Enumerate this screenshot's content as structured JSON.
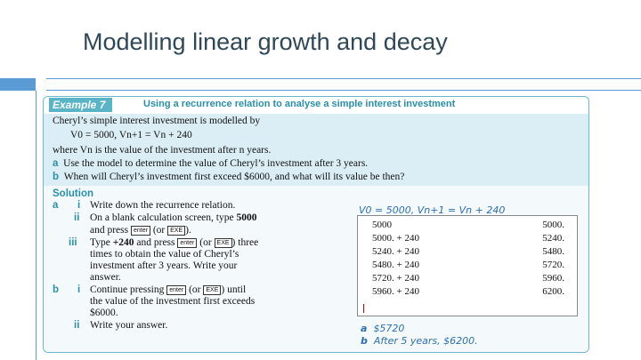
{
  "slide": {
    "title": "Modelling linear growth and decay"
  },
  "example": {
    "badge": "Example 7",
    "heading": "Using a recurrence relation to analyse a simple interest investment",
    "lines": [
      "Cheryl’s simple interest investment is modelled by",
      "V0 = 5000,          Vn+1 = Vn + 240",
      "where Vn is the value of the investment after n years.",
      "Use the model to determine the value of Cheryl’s investment after 3 years.",
      "When will Cheryl’s investment first exceed $6000, and what will its value be then?"
    ],
    "part_a": "a",
    "part_b": "b"
  },
  "solution": {
    "title": "Solution",
    "a_label": "a",
    "b_label": "b",
    "steps": {
      "a_i_num": "i",
      "a_i": "Write down the recurrence relation.",
      "a_ii_num": "ii",
      "a_ii_1a": "On a blank calculation screen, type ",
      "a_ii_1b": "5000",
      "a_ii_2a": "and press ",
      "a_ii_2b": " (or ",
      "a_ii_2c": ").",
      "a_iii_num": "iii",
      "a_iii_1a": "Type ",
      "a_iii_1b": "+240",
      "a_iii_1c": " and press ",
      "a_iii_1d": " (or ",
      "a_iii_1e": ") three",
      "a_iii_2": "times to obtain the value of Cheryl’s",
      "a_iii_3": "investment after 3 years. Write your",
      "a_iii_4": "answer.",
      "b_i_num": "i",
      "b_i_1a": "Continue pressing ",
      "b_i_1b": " (or ",
      "b_i_1c": ") until",
      "b_i_2": "the value of the investment first exceeds",
      "b_i_3": "$6000.",
      "b_ii_num": "ii",
      "b_ii": "Write your answer."
    },
    "keys": {
      "enter": "enter",
      "exe": "EXE"
    }
  },
  "handwritten": {
    "relation": "V0 = 5000, Vn+1 = Vn + 240",
    "answer_a_label": "a",
    "answer_a": "$5720",
    "answer_b_label": "b",
    "answer_b": "After 5 years, $6200."
  },
  "calculator": {
    "rows": [
      {
        "left": "5000",
        "right": "5000."
      },
      {
        "left": "5000. + 240",
        "right": "5240."
      },
      {
        "left": "5240. + 240",
        "right": "5480."
      },
      {
        "left": "5480. + 240",
        "right": "5720."
      },
      {
        "left": "5720. + 240",
        "right": "5960."
      },
      {
        "left": "5960. + 240",
        "right": "6200."
      }
    ]
  }
}
